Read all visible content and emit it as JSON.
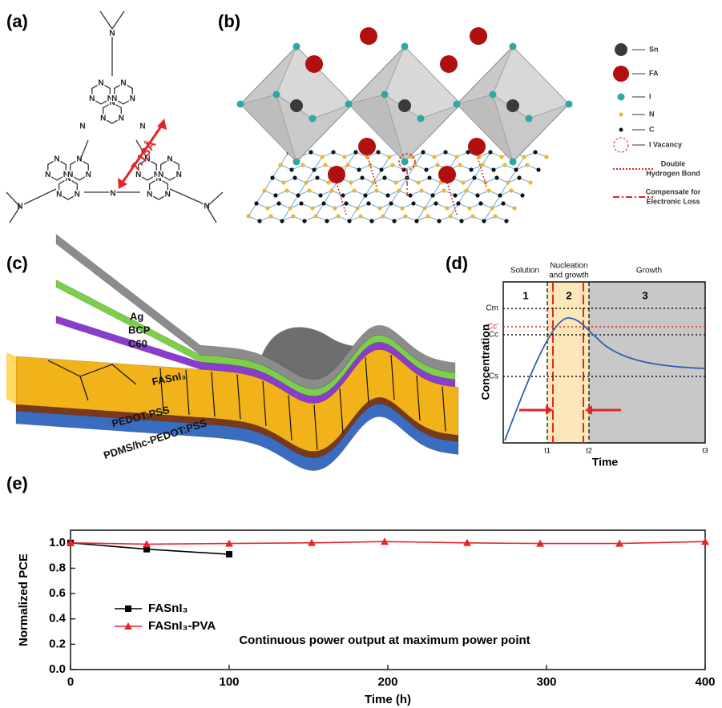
{
  "panels": {
    "a": {
      "label": "(a)",
      "atom": "N",
      "distance": "7.13Å"
    },
    "b": {
      "label": "(b)",
      "legend": [
        [
          "Sn"
        ],
        [
          "FA"
        ],
        [
          "I"
        ],
        [
          "N"
        ],
        [
          "C"
        ],
        [
          "I Vacancy"
        ],
        [
          "Double",
          "Hydrogen Bond"
        ],
        [
          "Compensate for",
          "Electronic Loss"
        ]
      ]
    },
    "c": {
      "label": "(c)",
      "layers": [
        "Ag",
        "BCP",
        "C60",
        "FASnI₃",
        "PEDOT:PSS",
        "PDMS/hc-PEDOT:PSS"
      ]
    },
    "d": {
      "label": "(d)",
      "regions": [
        "Solution",
        "Nucleation",
        "and growth",
        "Growth"
      ],
      "stages": [
        "1",
        "2",
        "3"
      ],
      "levels": [
        "Cm",
        "Cc'",
        "Cc",
        "Cs"
      ],
      "times": [
        "t1",
        "t2",
        "t3"
      ],
      "ylabel": "Concentration",
      "xlabel": "Time"
    },
    "e": {
      "label": "(e)"
    }
  },
  "chart_data": {
    "type": "line",
    "xlabel": "Time  (h)",
    "ylabel": "Normalized PCE",
    "annotation": "Continuous power output at maximum power point",
    "xlim": [
      0,
      400
    ],
    "xticks": [
      0,
      100,
      200,
      300,
      400
    ],
    "ylim": [
      0,
      1.1
    ],
    "yticks": [
      {
        "value": 0,
        "label": "0.0"
      },
      {
        "value": 0.2,
        "label": "0.2"
      },
      {
        "value": 0.4,
        "label": "0.4"
      },
      {
        "value": 0.6,
        "label": "0.6"
      },
      {
        "value": 0.8,
        "label": "0.8"
      },
      {
        "value": 1,
        "label": "1.0"
      }
    ],
    "legend": "left",
    "series": [
      {
        "name": "FASnI₃",
        "color": "#000000",
        "marker": "square",
        "x": [
          0,
          48,
          100
        ],
        "values": [
          1.0,
          0.95,
          0.91
        ]
      },
      {
        "name": "FASnI₃-PVA",
        "color": "#e8262a",
        "marker": "triangle",
        "x": [
          0,
          48,
          100,
          152,
          198,
          250,
          296,
          346,
          400
        ],
        "values": [
          1.0,
          0.99,
          0.995,
          1.0,
          1.01,
          1.0,
          0.995,
          0.995,
          1.01
        ]
      }
    ]
  }
}
